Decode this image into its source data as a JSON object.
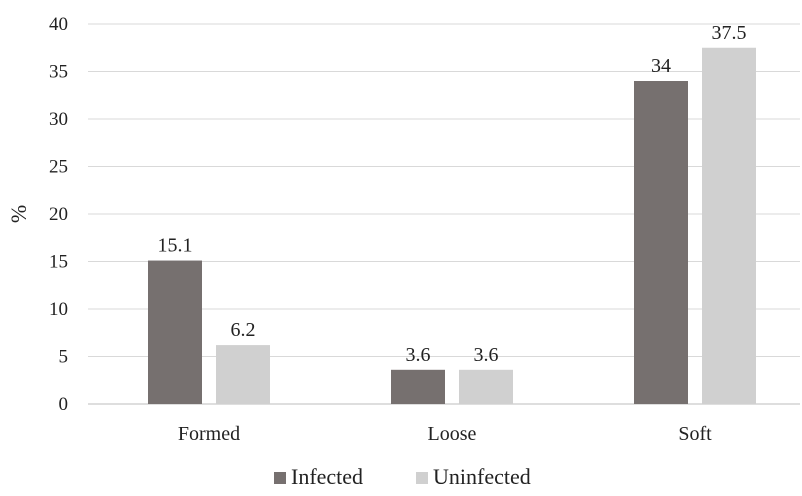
{
  "chart_data": {
    "type": "bar",
    "title": "",
    "xlabel": "",
    "ylabel": "%",
    "ylim": [
      0,
      40
    ],
    "yticks": [
      0,
      5,
      10,
      15,
      20,
      25,
      30,
      35,
      40
    ],
    "categories": [
      "Formed",
      "Loose",
      "Soft"
    ],
    "series": [
      {
        "name": "Infected",
        "values": [
          15.1,
          3.6,
          34
        ],
        "labels": [
          "15.1",
          "3.6",
          "34"
        ],
        "color": "#76706f"
      },
      {
        "name": "Uninfected",
        "values": [
          6.2,
          3.6,
          37.5
        ],
        "labels": [
          "6.2",
          "3.6",
          "37.5"
        ],
        "color": "#d0d0d0"
      }
    ],
    "grid": true,
    "legend": "bottom"
  }
}
